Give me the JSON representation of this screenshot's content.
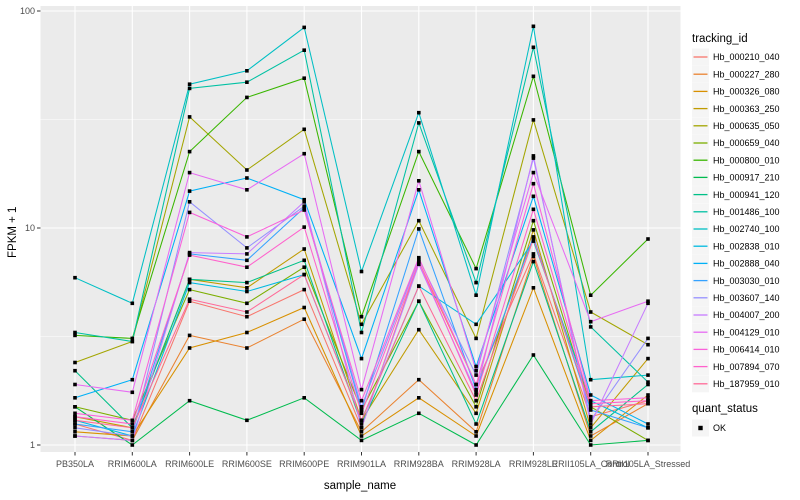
{
  "figure": {
    "background": "#FFFFFF",
    "panel_color": "#EBEBEB",
    "grid_color": "#FFFFFF",
    "tick_label_color": "#4D4D4D",
    "point_color": "#000000"
  },
  "chart_data": {
    "type": "line",
    "title": "",
    "xlabel": "sample_name",
    "ylabel": "FPKM + 1",
    "y_scale": "log10",
    "y_ticks": [
      1,
      10,
      100
    ],
    "y_minor_ticks": [
      3.162,
      31.62
    ],
    "ylim": [
      0.93,
      106
    ],
    "grid": true,
    "legend_position": "right",
    "point_shape": "filled-square",
    "categories": [
      "PB350LA",
      "RRIM600LA",
      "RRIM600LE",
      "RRIM600SE",
      "RRIM600PE",
      "RRIM901LA",
      "RRIM928BA",
      "RRIM928LA",
      "RRIM928LE",
      "RRII105LA_Control",
      "RRII105LA_Stressed"
    ],
    "series": [
      {
        "name": "Hb_000210_040",
        "color": "#F8766D",
        "values": [
          1.25,
          1.05,
          4.6,
          3.9,
          5.2,
          1.2,
          7.0,
          1.9,
          7.6,
          1.35,
          1.6
        ]
      },
      {
        "name": "Hb_000227_280",
        "color": "#EA8331",
        "values": [
          1.1,
          1.05,
          3.2,
          2.8,
          3.8,
          1.15,
          2.0,
          1.15,
          7.4,
          1.1,
          1.55
        ]
      },
      {
        "name": "Hb_000326_080",
        "color": "#D89000",
        "values": [
          1.15,
          1.1,
          2.8,
          3.3,
          4.3,
          1.1,
          1.65,
          1.1,
          5.3,
          1.05,
          1.7
        ]
      },
      {
        "name": "Hb_000363_250",
        "color": "#C09B00",
        "values": [
          1.35,
          1.2,
          5.8,
          5.3,
          8.0,
          1.3,
          3.4,
          1.4,
          9.8,
          1.2,
          2.5
        ]
      },
      {
        "name": "Hb_000635_050",
        "color": "#A3A500",
        "values": [
          2.4,
          3.0,
          32.5,
          18.5,
          28.5,
          3.6,
          10.8,
          3.1,
          31.5,
          4.1,
          2.9
        ]
      },
      {
        "name": "Hb_000659_040",
        "color": "#7CAE00",
        "values": [
          1.5,
          1.3,
          5.2,
          4.5,
          6.6,
          1.45,
          4.6,
          1.5,
          10.8,
          1.5,
          1.05
        ]
      },
      {
        "name": "Hb_000800_010",
        "color": "#39B600",
        "values": [
          3.2,
          3.1,
          22.5,
          40,
          49,
          3.9,
          22.5,
          6.5,
          50,
          4.9,
          8.9
        ]
      },
      {
        "name": "Hb_000917_210",
        "color": "#00BB4E",
        "values": [
          1.5,
          1.0,
          1.6,
          1.3,
          1.65,
          1.05,
          1.4,
          1.0,
          2.6,
          1.0,
          1.05
        ]
      },
      {
        "name": "Hb_000941_120",
        "color": "#00C087",
        "values": [
          2.2,
          1.2,
          5.8,
          5.6,
          7.1,
          1.25,
          4.6,
          1.25,
          7.0,
          1.15,
          1.9
        ]
      },
      {
        "name": "Hb_001486_100",
        "color": "#00C1A3",
        "values": [
          3.3,
          3.0,
          44,
          47,
          66,
          3.3,
          30.5,
          5.6,
          68,
          3.5,
          1.95
        ]
      },
      {
        "name": "Hb_002740_100",
        "color": "#00BFC4",
        "values": [
          5.9,
          4.5,
          46,
          53,
          84,
          6.3,
          34,
          4.9,
          85,
          2.0,
          2.1
        ]
      },
      {
        "name": "Hb_002838_010",
        "color": "#00BAE0",
        "values": [
          1.3,
          1.1,
          5.6,
          5.1,
          6.1,
          1.3,
          5.4,
          3.6,
          8.7,
          1.6,
          1.2
        ]
      },
      {
        "name": "Hb_002888_040",
        "color": "#00B0F6",
        "values": [
          1.65,
          2.0,
          14.8,
          17.0,
          13.5,
          2.5,
          15.0,
          2.3,
          14.0,
          1.7,
          1.25
        ]
      },
      {
        "name": "Hb_003030_010",
        "color": "#35A2FF",
        "values": [
          1.25,
          1.15,
          7.6,
          7.1,
          12.4,
          1.45,
          9.9,
          1.8,
          9.1,
          1.45,
          1.2
        ]
      },
      {
        "name": "Hb_003607_140",
        "color": "#9590FF",
        "values": [
          1.2,
          1.1,
          13.2,
          8.1,
          12.6,
          1.5,
          7.2,
          2.1,
          21.0,
          1.3,
          3.1
        ]
      },
      {
        "name": "Hb_004007_200",
        "color": "#C77CFF",
        "values": [
          1.1,
          1.05,
          7.7,
          7.6,
          13.2,
          1.2,
          6.8,
          1.75,
          21.5,
          1.25,
          4.5
        ]
      },
      {
        "name": "Hb_004129_010",
        "color": "#E76BF3",
        "values": [
          1.9,
          1.75,
          18.0,
          15.0,
          22.0,
          1.8,
          16.5,
          2.2,
          18.0,
          3.7,
          4.6
        ]
      },
      {
        "name": "Hb_006414_010",
        "color": "#FA62DB",
        "values": [
          1.4,
          1.3,
          11.8,
          9.1,
          12.1,
          1.6,
          7.3,
          1.9,
          16.0,
          1.6,
          1.65
        ]
      },
      {
        "name": "Hb_007894_070",
        "color": "#FF61CC",
        "values": [
          1.35,
          1.25,
          7.5,
          6.6,
          10.1,
          1.4,
          7.0,
          1.7,
          12.2,
          1.55,
          1.6
        ]
      },
      {
        "name": "Hb_187959_010",
        "color": "#FF6A98",
        "values": [
          1.3,
          1.2,
          4.7,
          4.1,
          6.1,
          1.3,
          5.4,
          1.6,
          8.9,
          1.5,
          1.55
        ]
      }
    ]
  },
  "legend": {
    "tracking_title": "tracking_id",
    "quant_title": "quant_status",
    "quant_items": [
      {
        "label": "OK"
      }
    ]
  }
}
